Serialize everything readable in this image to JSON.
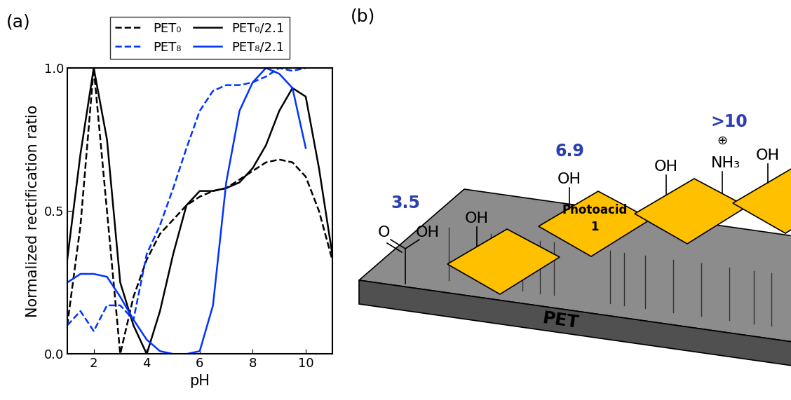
{
  "chart_data": {
    "type": "line",
    "title": "(a)",
    "x_label": "pH",
    "y_label": "Normalized rectification ratio",
    "xlim": [
      1,
      11
    ],
    "ylim": [
      0,
      1
    ],
    "xticks": [
      2,
      4,
      6,
      8,
      10
    ],
    "yticks": [
      {
        "value": 0,
        "label": "0.0"
      },
      {
        "value": 0.5,
        "label": "0.5"
      },
      {
        "value": 1,
        "label": "1.0"
      }
    ],
    "legend": "lower center",
    "x": [
      1,
      1.5,
      2,
      2.5,
      3,
      3.5,
      4,
      4.5,
      5,
      5.5,
      6,
      6.5,
      7,
      7.5,
      8,
      8.5,
      9,
      9.5,
      10,
      10.5,
      11
    ],
    "series": [
      {
        "name": "PET₀",
        "color": "#000000",
        "line_style": "dashed",
        "values": [
          0.1,
          0.45,
          1.0,
          0.5,
          0.0,
          0.2,
          0.33,
          0.42,
          0.47,
          0.52,
          0.55,
          0.57,
          0.58,
          0.61,
          0.64,
          0.67,
          0.68,
          0.67,
          0.62,
          0.5,
          0.33
        ]
      },
      {
        "name": "PET₀/2.1",
        "color": "#000000",
        "line_style": "solid",
        "values": [
          0.33,
          0.7,
          1.0,
          0.75,
          0.25,
          0.1,
          0.0,
          0.15,
          0.35,
          0.52,
          0.57,
          0.57,
          0.58,
          0.6,
          0.65,
          0.73,
          0.85,
          0.93,
          0.9,
          0.65,
          0.35
        ]
      },
      {
        "name": "PET₈",
        "color": "#0033ff",
        "line_style": "dashed",
        "values": [
          0.1,
          0.15,
          0.08,
          0.17,
          0.17,
          0.12,
          0.35,
          0.45,
          0.58,
          0.72,
          0.85,
          0.92,
          0.94,
          0.94,
          0.95,
          0.97,
          1.0,
          0.99,
          1.0,
          null,
          null
        ]
      },
      {
        "name": "PET₈/2.1",
        "color": "#0033ff",
        "line_style": "solid",
        "values": [
          0.25,
          0.28,
          0.28,
          0.27,
          0.2,
          0.12,
          0.05,
          0.01,
          0.0,
          0.0,
          0.01,
          0.17,
          0.6,
          0.85,
          0.95,
          1.0,
          0.98,
          0.93,
          0.72,
          null,
          null
        ]
      }
    ]
  },
  "diagram": {
    "title": "(b)",
    "surface_label": "PET",
    "photoacid_label": [
      "Photoacid",
      "1"
    ],
    "carboxyl": {
      "pka": "3.5",
      "atoms": [
        "O",
        "OH"
      ]
    },
    "hydroxyls": [
      {
        "label": "OH"
      },
      {
        "label": "OH",
        "pka": "6.9"
      },
      {
        "label": "OH"
      },
      {
        "label": "OH"
      }
    ],
    "amine": {
      "pka": ">10",
      "label": "NH₃",
      "charge": "⊕"
    }
  }
}
